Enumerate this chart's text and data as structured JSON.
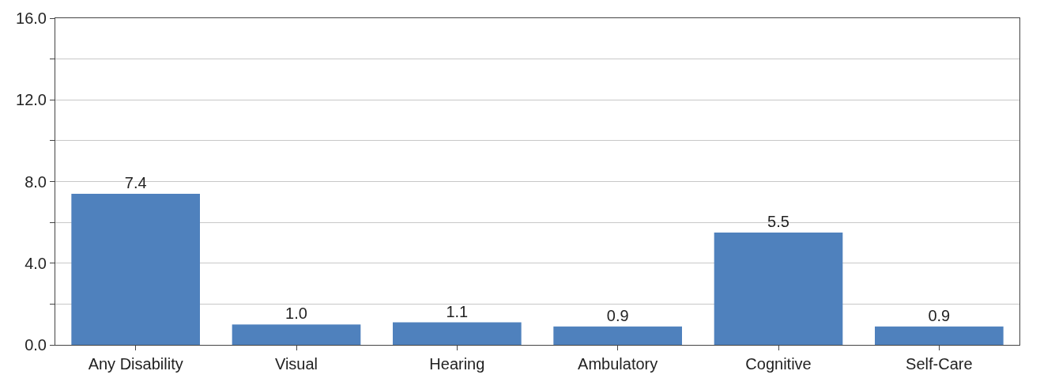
{
  "chart_data": {
    "type": "bar",
    "categories": [
      "Any Disability",
      "Visual",
      "Hearing",
      "Ambulatory",
      "Cognitive",
      "Self-Care"
    ],
    "values": [
      7.4,
      1.0,
      1.1,
      0.9,
      5.5,
      0.9
    ],
    "color": "#4f81bd",
    "ylim": [
      0,
      16
    ],
    "yticks": [
      {
        "value": 0,
        "label": "0.0"
      },
      {
        "value": 2,
        "label": null
      },
      {
        "value": 4,
        "label": "4.0"
      },
      {
        "value": 6,
        "label": null
      },
      {
        "value": 8,
        "label": "8.0"
      },
      {
        "value": 10,
        "label": null
      },
      {
        "value": 12,
        "label": "12.0"
      },
      {
        "value": 14,
        "label": null
      },
      {
        "value": 16,
        "label": "16.0"
      }
    ],
    "grid": "y",
    "value_labels": [
      "7.4",
      "1.0",
      "1.1",
      "0.9",
      "5.5",
      "0.9"
    ]
  }
}
